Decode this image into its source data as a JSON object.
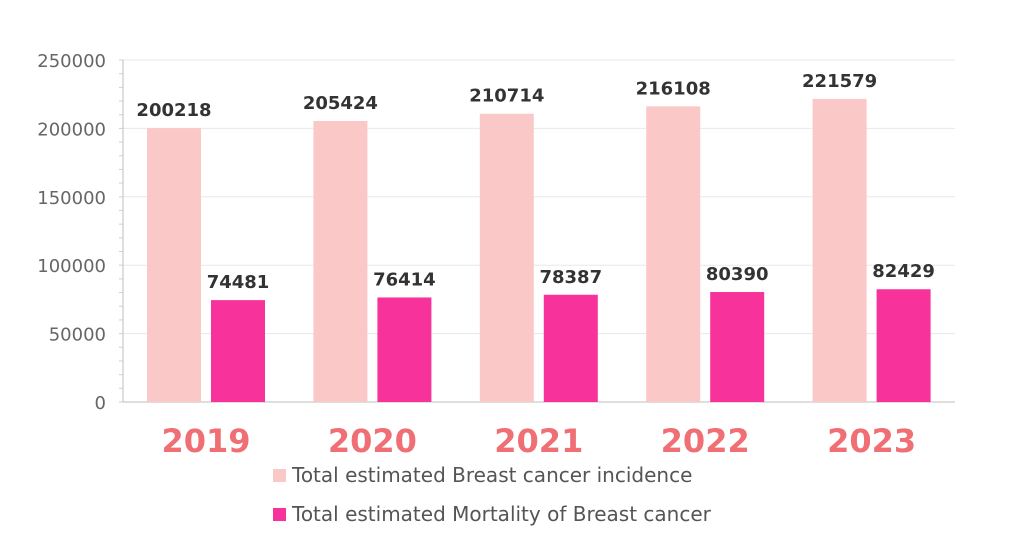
{
  "colors": {
    "incidence": "#fbc8c8",
    "mortality": "#f7339b",
    "year_label": "#ef6f74",
    "value_label": "#333333",
    "axis_text": "#666666",
    "grid": "#e8e8e8"
  },
  "chart_data": {
    "type": "bar",
    "categories": [
      "2019",
      "2020",
      "2021",
      "2022",
      "2023"
    ],
    "series": [
      {
        "name": "Total estimated Breast cancer incidence",
        "values": [
          200218,
          205424,
          210714,
          216108,
          221579
        ]
      },
      {
        "name": "Total estimated Mortality of Breast cancer",
        "values": [
          74481,
          76414,
          78387,
          80390,
          82429
        ]
      }
    ],
    "ylim": [
      0,
      250000
    ],
    "yticks": [
      "0",
      "50000",
      "100000",
      "150000",
      "200000",
      "250000"
    ],
    "grid": true,
    "legend_position": "bottom",
    "title": "",
    "xlabel": "",
    "ylabel": ""
  }
}
